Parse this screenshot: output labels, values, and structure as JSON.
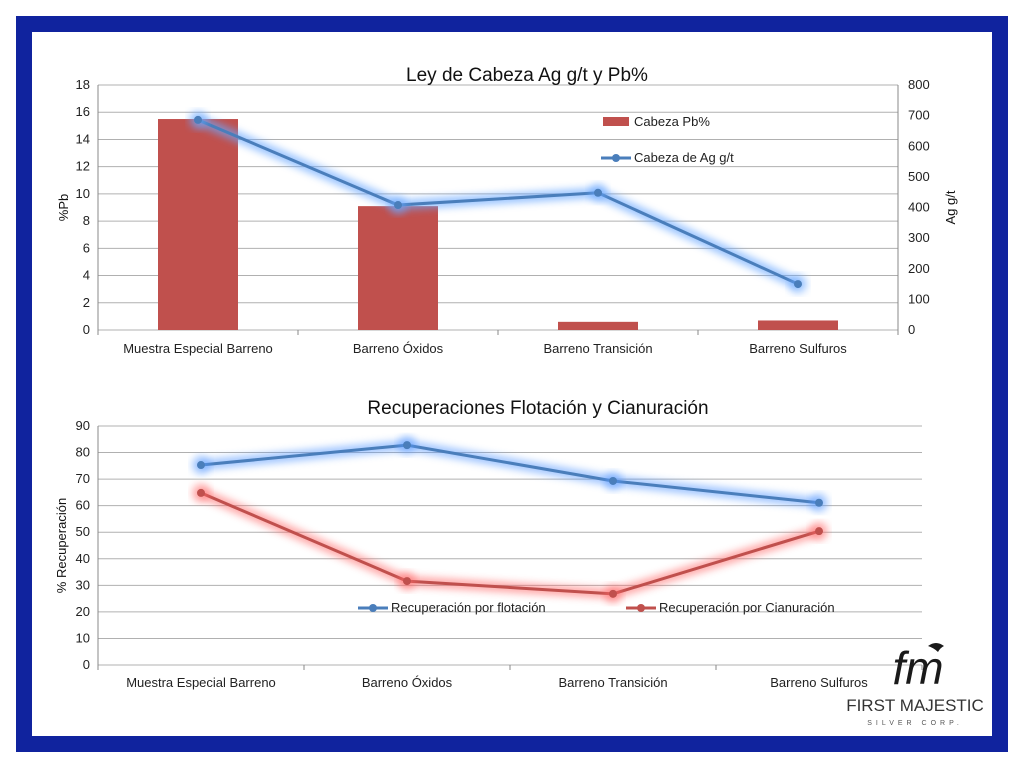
{
  "chart_data": [
    {
      "type": "bar+line",
      "title": "Ley de Cabeza Ag g/t y Pb%",
      "categories": [
        "Muestra Especial Barreno",
        "Barreno Óxidos",
        "Barreno Transición",
        "Barreno Sulfuros"
      ],
      "ylabel": "%Pb",
      "ylabel_right": "Ag g/t",
      "ylim": [
        0,
        18
      ],
      "ylim_right": [
        0,
        800
      ],
      "yticks": [
        "0",
        "2",
        "4",
        "6",
        "8",
        "10",
        "12",
        "14",
        "16",
        "18"
      ],
      "yticks_right": [
        "0",
        "100",
        "200",
        "300",
        "400",
        "500",
        "600",
        "700",
        "800"
      ],
      "grid": true,
      "legend_position": "top-right",
      "series": [
        {
          "name": "Cabeza Pb%",
          "type": "bar",
          "axis": "left",
          "color": "#c0504d",
          "values": [
            15.5,
            9.1,
            0.6,
            0.7
          ]
        },
        {
          "name": "Cabeza de Ag g/t",
          "type": "line",
          "axis": "right",
          "color": "#4a7ebb",
          "values": [
            686,
            408,
            448,
            150
          ]
        }
      ]
    },
    {
      "type": "line",
      "title": "Recuperaciones Flotación y Cianuración",
      "categories": [
        "Muestra Especial Barreno",
        "Barreno Óxidos",
        "Barreno Transición",
        "Barreno Sulfuros"
      ],
      "ylabel": "% Recuperación",
      "ylim": [
        0,
        90
      ],
      "yticks": [
        "0",
        "10",
        "20",
        "30",
        "40",
        "50",
        "60",
        "70",
        "80",
        "90"
      ],
      "grid": true,
      "legend_position": "bottom-inside",
      "series": [
        {
          "name": "Recuperación por flotación",
          "color": "#4a7ebb",
          "glow": "#5b9bff",
          "values": [
            75.3,
            82.8,
            69.3,
            61.1
          ]
        },
        {
          "name": "Recuperación por Cianuración",
          "color": "#c0504d",
          "glow": "#ff6b6b",
          "values": [
            64.8,
            31.6,
            26.8,
            50.4
          ]
        }
      ]
    }
  ],
  "logo": {
    "monogram": "fm",
    "name": "FIRST MAJESTIC",
    "subtitle": "SILVER CORP."
  }
}
